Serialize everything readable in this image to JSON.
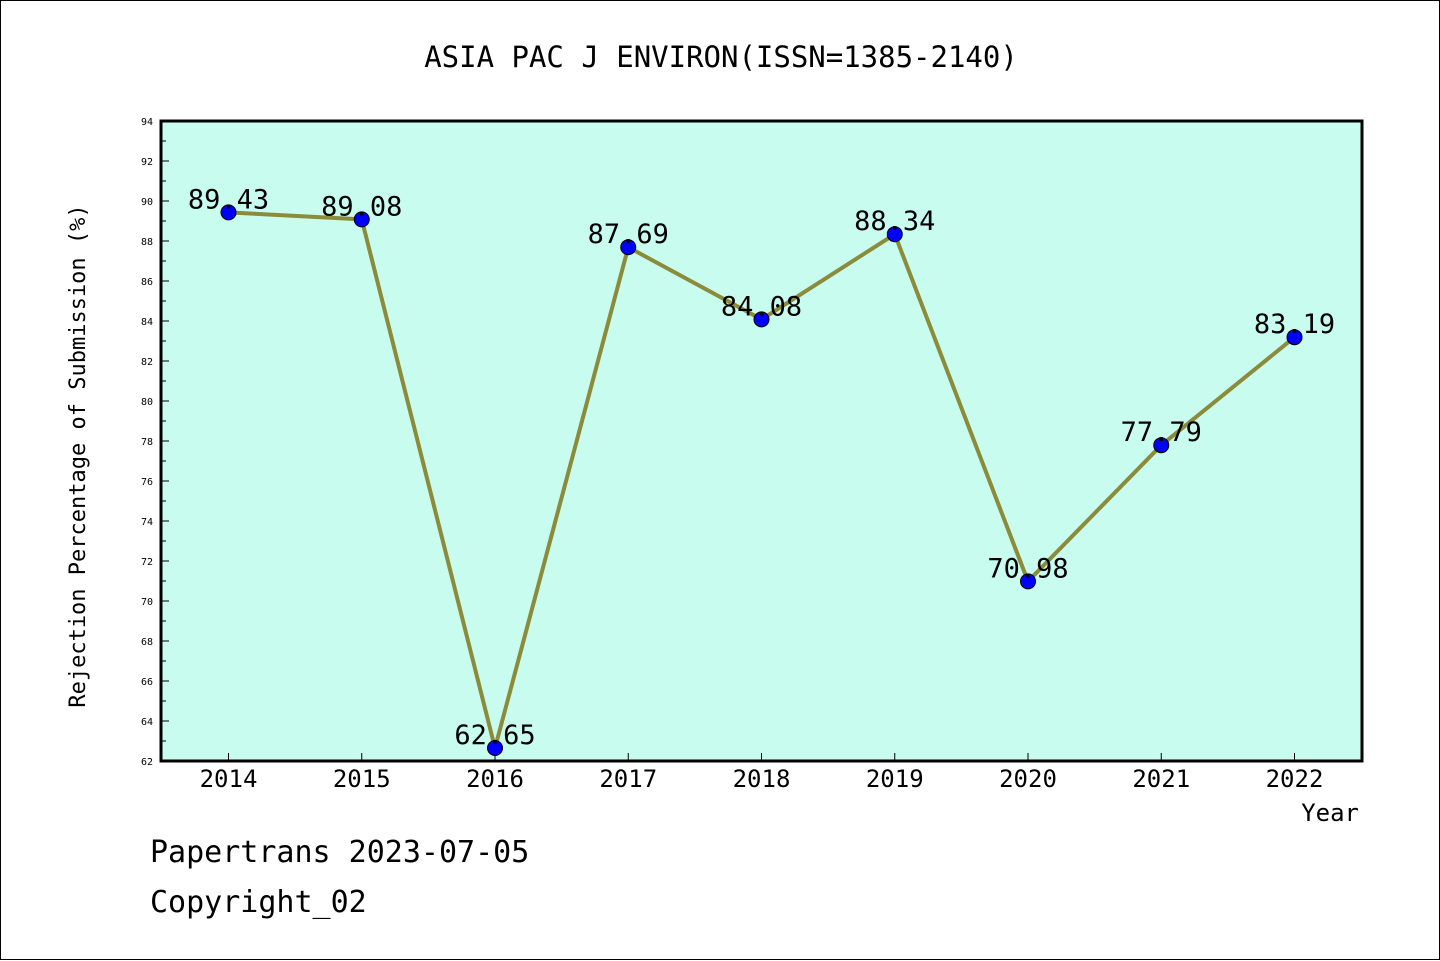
{
  "chart_data": {
    "type": "line",
    "title": "ASIA PAC J ENVIRON(ISSN=1385-2140)",
    "xlabel": "Year",
    "ylabel": "Rejection Percentage of Submission (%)",
    "categories": [
      "2014",
      "2015",
      "2016",
      "2017",
      "2018",
      "2019",
      "2020",
      "2021",
      "2022"
    ],
    "series": [
      {
        "values": [
          89.43,
          89.08,
          62.65,
          87.69,
          84.08,
          88.34,
          70.98,
          77.79,
          83.19
        ],
        "labels": [
          "89.43",
          "89.08",
          "62.65",
          "87.69",
          "84.08",
          "88.34",
          "70.98",
          "77.79",
          "83.19"
        ]
      }
    ],
    "ylim": [
      62,
      94
    ],
    "yticks": [
      "62",
      "64",
      "66",
      "68",
      "70",
      "72",
      "74",
      "76",
      "78",
      "80",
      "82",
      "84",
      "86",
      "88",
      "90",
      "92",
      "94"
    ],
    "grid": false,
    "colors": {
      "plot_background": "#c8fcee",
      "line": "#8b8b3a",
      "marker": "#0000ff"
    }
  },
  "footer": {
    "line1": "Papertrans 2023-07-05",
    "line2": "Copyright_02"
  }
}
